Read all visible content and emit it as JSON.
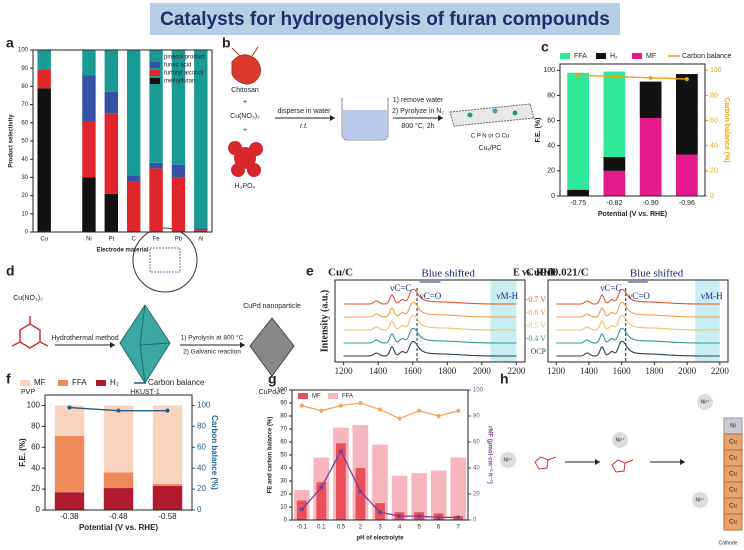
{
  "title": "Catalysts for hydrogenolysis  of furan compounds",
  "panel_labels": [
    "a",
    "b",
    "c",
    "d",
    "e",
    "f",
    "g",
    "h"
  ],
  "diagram_b": {
    "precursor": "Chitosan",
    "salt": "Cu(NO₃)₂",
    "acid": "H₃PO₄",
    "step1_top": "disperse in water",
    "step1_bottom": "r.t.",
    "step2_line1": "1) remove water",
    "step2_line2": "2) Pyrolyze in N₂",
    "step2_line3": "800 °C, 2h",
    "atoms": "C  P  N or O  Cu",
    "product": "Cuₓ/PC"
  },
  "diagram_d": {
    "salt": "Cu(NO₃)₂",
    "polymer": "PVP",
    "step1": "Hydrothermal method",
    "mof": "HKUST-1",
    "step2_line1": "1) Pyrolysis at 800 °C",
    "step2_line2": "2) Galvanic reaction",
    "particle": "CuPd nanoparticle",
    "product": "CuPdₓ/C"
  },
  "diagram_h": {
    "ion": "Ni²⁺",
    "top_metal": "Ni",
    "metal": "Cu",
    "electrode": "Cathode"
  },
  "chart_data": [
    {
      "type": "bar",
      "barmode": "stack",
      "xlabel": "Electrode material",
      "ylabel": "Product selectivity",
      "categories": [
        "Cu",
        null,
        "Ni",
        "Pt",
        "C",
        "Fe",
        "Pb",
        "Al"
      ],
      "series": [
        {
          "name": "methylfuran",
          "color": "#111111",
          "values": [
            79,
            null,
            30,
            21,
            0,
            0,
            0,
            0
          ]
        },
        {
          "name": "furfuryl alcohol",
          "color": "#e0262b",
          "values": [
            10,
            null,
            31,
            44,
            28,
            35,
            30,
            1
          ]
        },
        {
          "name": "furoic acid",
          "color": "#3453a4",
          "values": [
            0,
            null,
            25,
            12,
            3,
            3,
            7,
            1
          ]
        },
        {
          "name": "pinacol product",
          "color": "#1a9a94",
          "values": [
            11,
            null,
            14,
            23,
            69,
            62,
            63,
            98
          ]
        }
      ],
      "ylim": [
        0,
        100
      ],
      "yticks": [
        0,
        10,
        20,
        30,
        40,
        50,
        60,
        70,
        80,
        90,
        100
      ]
    },
    {
      "type": "bar",
      "barmode": "stack",
      "xlabel": "Potential (V vs. RHE)",
      "ylabel": "F.E. (%)",
      "y2label": "Carbon balance (%)",
      "y2color": "#e8a317",
      "categories": [
        "-0.75",
        "-0.82",
        "-0.90",
        "-0.96"
      ],
      "series": [
        {
          "name": "MF",
          "color": "#e6198c",
          "values": [
            0,
            20,
            62,
            33
          ]
        },
        {
          "name": "H₂",
          "color": "#111111",
          "values": [
            5,
            11,
            29,
            64
          ]
        },
        {
          "name": "FFA",
          "color": "#2fe89a",
          "values": [
            93,
            68,
            0,
            0
          ]
        },
        {
          "name": "Carbon balance",
          "type": "line",
          "axis": "y2",
          "color": "#e8a317",
          "values": [
            96,
            95,
            94,
            93
          ]
        }
      ],
      "ylim": [
        0,
        105
      ],
      "yticks": [
        0,
        20,
        40,
        60,
        80,
        100
      ],
      "y2lim": [
        0,
        105
      ],
      "y2ticks": [
        0,
        20,
        40,
        60,
        80,
        100
      ]
    },
    {
      "type": "spectra",
      "title": "Cu/C",
      "ylabel": "Intensity (a.u.)",
      "xlim": [
        1150,
        2250
      ],
      "xticks": [
        1200,
        1400,
        1600,
        1800,
        2000,
        2200
      ],
      "annotations": [
        "νC=C",
        "νC=O",
        "Blue shifted",
        "νM-H"
      ]
    },
    {
      "type": "spectra",
      "title": "CuPd0.021/C",
      "legend_title": "E vs. RHE",
      "labels": [
        "-0.7 V",
        "-0.6 V",
        "-0.5 V",
        "-0.4 V",
        "OCP"
      ],
      "xlim": [
        1150,
        2250
      ],
      "xticks": [
        1200,
        1400,
        1600,
        1800,
        2000,
        2200
      ],
      "annotations": [
        "νC=C",
        "νC=O",
        "Blue shifted",
        "νM-H"
      ]
    },
    {
      "type": "bar",
      "barmode": "stack",
      "xlabel": "Potential (V vs. RHE)",
      "ylabel": "F.E. (%)",
      "y2label": "Carbon balance (%)",
      "y2color": "#1f5f8b",
      "categories": [
        "-0.38",
        "-0.48",
        "-0.58"
      ],
      "series": [
        {
          "name": "H₂",
          "color": "#b01c2e",
          "values": [
            17,
            21,
            23
          ]
        },
        {
          "name": "FFA",
          "color": "#ef8a5a",
          "values": [
            54,
            15,
            2
          ]
        },
        {
          "name": "MF",
          "color": "#fad3bf",
          "values": [
            29,
            64,
            75
          ]
        },
        {
          "name": "Carbon balance",
          "type": "line",
          "axis": "y2",
          "color": "#1f5f8b",
          "values": [
            98,
            95,
            95
          ]
        }
      ],
      "ylim": [
        0,
        110
      ],
      "yticks": [
        0,
        20,
        40,
        60,
        80,
        100
      ],
      "y2lim": [
        0,
        110
      ],
      "y2ticks": [
        0,
        20,
        40,
        60,
        80,
        100
      ]
    },
    {
      "type": "bar",
      "barmode": "overlay",
      "xlabel": "pH of electrolyte",
      "ylabel": "FE and carbon balance (%)",
      "y2label": "rMF (μmol·cm⁻²·h⁻¹)",
      "y2color": "#7b3f98",
      "categories": [
        "-0.1",
        "0.1",
        "0.5",
        "2",
        "3",
        "4",
        "5",
        "6",
        "7"
      ],
      "series": [
        {
          "name": "FFA",
          "color": "#f7b5bd",
          "values": [
            23,
            48,
            71,
            73,
            58,
            34,
            36,
            38,
            48
          ]
        },
        {
          "name": "MF",
          "color": "#e8505b",
          "values": [
            15,
            29,
            59,
            40,
            13,
            6,
            6,
            5,
            3
          ]
        },
        {
          "type": "line",
          "color": "#f5a35c",
          "values": [
            88,
            84,
            88,
            90,
            85,
            78,
            84,
            80,
            84
          ]
        },
        {
          "type": "line",
          "axis": "y2",
          "color": "#7b3f98",
          "values": [
            8,
            25,
            53,
            22,
            6,
            3,
            3,
            2,
            2
          ]
        }
      ],
      "ylim": [
        0,
        100
      ],
      "yticks": [
        0,
        10,
        20,
        30,
        40,
        50,
        60,
        70,
        80,
        90,
        100
      ],
      "y2lim": [
        0,
        100
      ],
      "y2ticks": [
        0,
        20,
        40,
        60,
        80,
        100
      ]
    }
  ]
}
